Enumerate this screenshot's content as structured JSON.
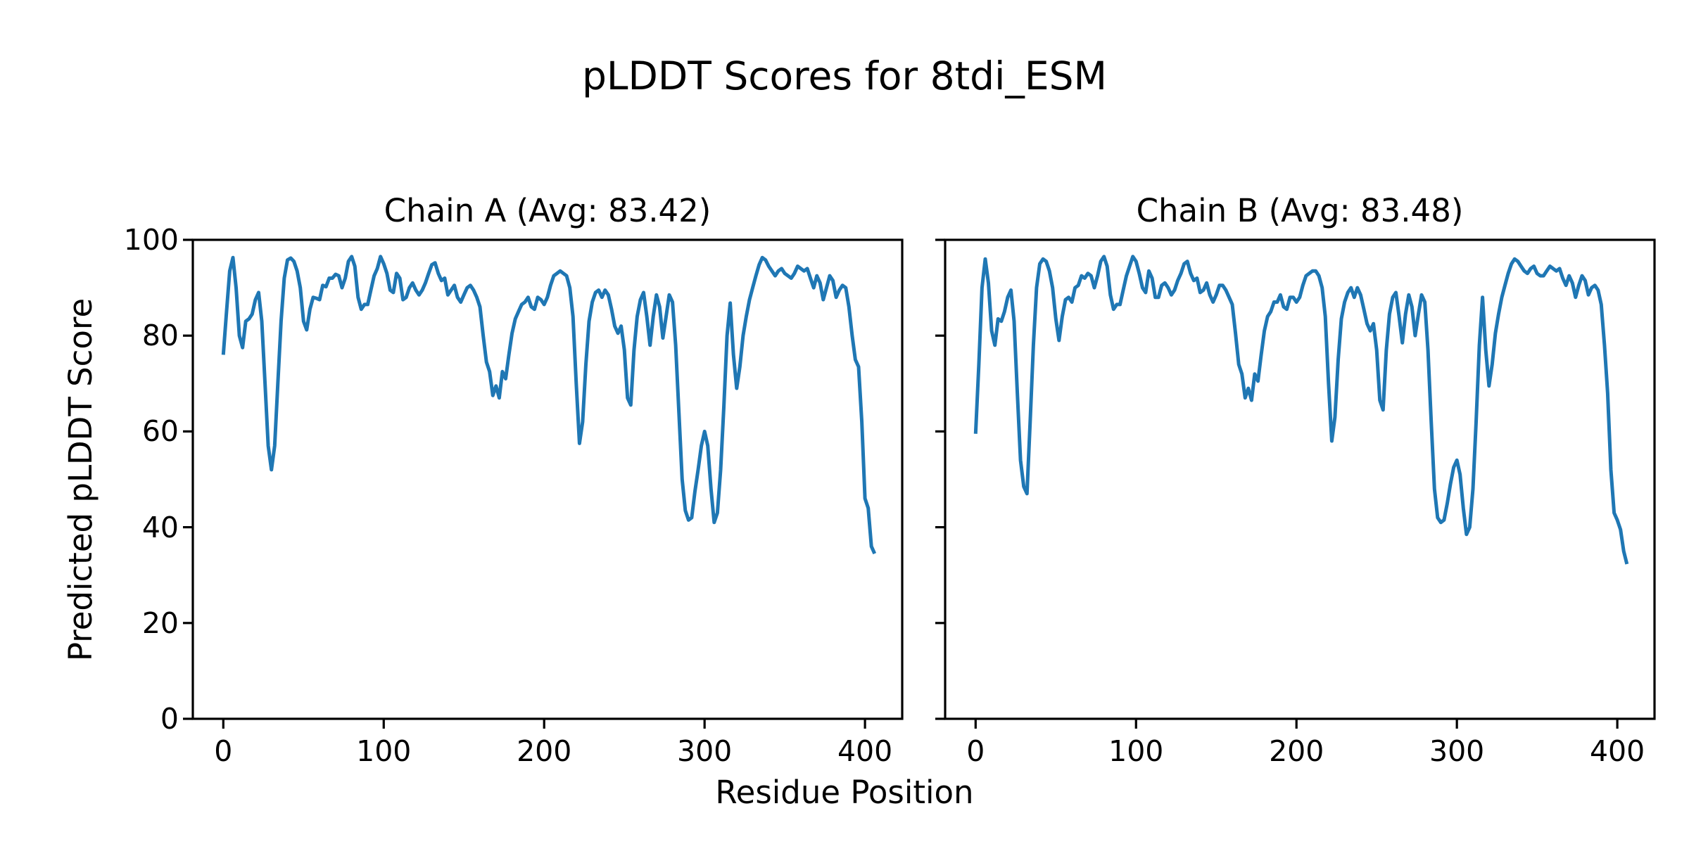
{
  "figure": {
    "title": "pLDDT Scores for 8tdi_ESM",
    "xlabel": "Residue Position",
    "ylabel": "Predicted pLDDT Score",
    "background_color": "#ffffff",
    "line_color": "#1f77b4",
    "spine_color": "#000000",
    "text_color": "#000000",
    "line_width": 5,
    "spine_width": 3.2,
    "tick_length": 14
  },
  "chart_data": [
    {
      "type": "line",
      "chain": "A",
      "title": "Chain A (Avg: 83.42)",
      "avg_plddt": 83.42,
      "xlim": [
        -19,
        423.2
      ],
      "ylim": [
        0,
        100
      ],
      "x_ticks": [
        0,
        100,
        200,
        300,
        400
      ],
      "y_ticks": [
        0,
        20,
        40,
        60,
        80,
        100
      ],
      "y_tick_labels_visible": true,
      "grid": false,
      "legend": "none",
      "x_start": 0,
      "x_step": 2,
      "values": [
        76,
        85,
        93.5,
        96.3,
        90,
        80,
        77.5,
        83,
        83.5,
        84.5,
        87.5,
        89,
        83,
        70,
        57,
        52,
        57,
        70,
        83,
        92,
        95.8,
        96.2,
        95.5,
        93.5,
        90,
        83,
        81.2,
        85.5,
        88,
        87.8,
        87.5,
        90.5,
        90.2,
        92,
        92,
        92.8,
        92.5,
        90,
        92,
        95.5,
        96.5,
        94.5,
        88,
        85.5,
        86.5,
        86.5,
        89.5,
        92.5,
        94,
        96.5,
        95,
        93,
        89.5,
        89,
        93,
        92,
        87.5,
        88,
        90,
        91,
        89.5,
        88.5,
        89.5,
        91,
        93,
        94.8,
        95.2,
        93,
        91.5,
        92,
        88.5,
        89.5,
        90.5,
        88,
        87,
        88.5,
        90,
        90.5,
        89.5,
        88,
        86,
        80,
        74.5,
        72.5,
        67.5,
        69.5,
        67,
        72.5,
        71,
        76,
        80.5,
        83.5,
        85,
        86.5,
        87,
        88,
        86,
        85.5,
        88,
        87.5,
        86.5,
        88,
        90.5,
        92.5,
        93,
        93.5,
        93,
        92.5,
        90,
        84,
        70,
        57.5,
        62,
        74,
        83,
        87,
        89,
        89.5,
        88,
        89.5,
        88.5,
        85.5,
        82,
        80.5,
        82,
        77,
        67,
        65.5,
        77,
        84,
        87.5,
        89,
        84,
        78,
        84,
        88.5,
        86,
        79.5,
        84,
        88.5,
        87,
        78,
        64,
        50,
        43.5,
        41.5,
        42,
        47.5,
        52,
        57,
        60,
        57,
        48,
        41,
        43,
        52,
        65,
        80,
        86.8,
        76,
        69,
        73.5,
        80,
        84,
        87.5,
        90,
        92.5,
        94.8,
        96.3,
        95.8,
        94.5,
        93.5,
        92.5,
        93.5,
        94,
        93,
        92.5,
        92,
        93,
        94.5,
        94,
        93.5,
        94,
        92,
        90,
        92.5,
        91,
        87.5,
        90,
        92.5,
        91.5,
        88,
        89.5,
        90.5,
        90,
        86,
        80,
        75,
        73.5,
        62,
        46,
        44,
        36,
        34.5
      ]
    },
    {
      "type": "line",
      "chain": "B",
      "title": "Chain B (Avg: 83.48)",
      "avg_plddt": 83.48,
      "xlim": [
        -19,
        423.2
      ],
      "ylim": [
        0,
        100
      ],
      "x_ticks": [
        0,
        100,
        200,
        300,
        400
      ],
      "y_ticks": [
        0,
        20,
        40,
        60,
        80,
        100
      ],
      "y_tick_labels_visible": false,
      "grid": false,
      "legend": "none",
      "x_start": 0,
      "x_step": 2,
      "values": [
        59.5,
        74,
        90,
        96,
        91,
        81,
        78,
        83.5,
        83,
        85,
        88,
        89.5,
        83,
        68,
        54,
        48.5,
        47,
        62,
        78,
        90,
        95,
        96,
        95.5,
        93.5,
        90,
        83.5,
        79,
        84,
        87.5,
        88,
        87,
        90,
        90.5,
        92.5,
        92,
        93,
        92.5,
        90,
        92.5,
        95.5,
        96.5,
        94.5,
        88.5,
        85.5,
        86.5,
        86.5,
        89.5,
        92.5,
        94.5,
        96.5,
        95.5,
        93,
        90,
        89,
        93.5,
        92,
        88,
        88,
        90.5,
        91,
        90,
        88.5,
        89.5,
        91.5,
        93,
        95,
        95.5,
        93,
        91.5,
        92,
        89,
        89.5,
        91,
        88.5,
        87,
        88.5,
        90.5,
        90.5,
        89.5,
        88,
        86.5,
        80.5,
        74,
        72,
        67,
        69,
        66.5,
        72,
        70.5,
        76,
        81,
        84,
        85,
        87,
        87,
        88.5,
        86,
        85.5,
        88,
        88,
        87,
        88,
        90.5,
        92.5,
        93,
        93.5,
        93.5,
        92.5,
        90,
        84,
        70,
        58,
        63,
        75,
        83.5,
        87,
        89,
        90,
        88,
        90,
        88.5,
        85.5,
        82.5,
        81,
        82.5,
        77,
        66.5,
        64.5,
        77,
        84.5,
        88,
        89,
        84,
        78.5,
        84.5,
        88.5,
        86,
        80,
        84.5,
        88.5,
        87,
        77,
        62,
        48,
        42,
        41,
        41.5,
        45,
        49,
        52.5,
        54,
        51,
        44,
        38.5,
        40,
        48,
        62,
        78,
        88,
        77,
        69.5,
        74,
        80.5,
        84.5,
        88,
        90.5,
        93,
        95,
        96,
        95.5,
        94.5,
        93.5,
        93,
        94,
        94.5,
        93,
        92.5,
        92.5,
        93.5,
        94.5,
        94,
        93.5,
        94,
        92,
        90.5,
        92.5,
        91,
        88,
        90.5,
        92.5,
        91.5,
        88.5,
        90,
        90.5,
        89.5,
        86.5,
        78,
        68,
        52,
        43,
        41.5,
        39.5,
        35,
        32.3
      ]
    }
  ]
}
